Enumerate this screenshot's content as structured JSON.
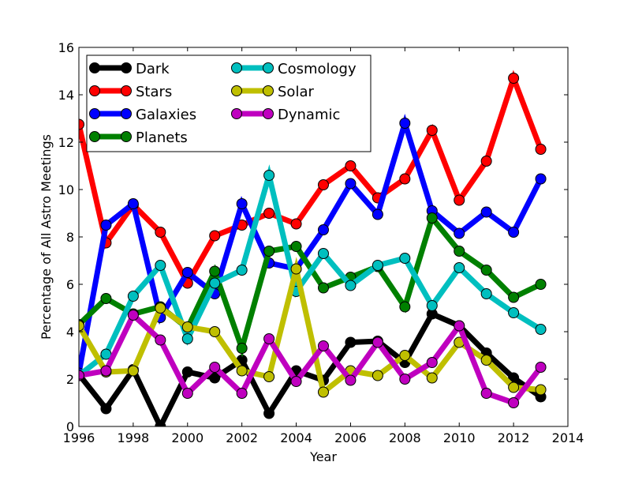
{
  "chart_data": {
    "type": "line",
    "title": "",
    "xlabel": "Year",
    "ylabel": "Percentage of All Astro Meetings",
    "xlim": [
      1996,
      2014
    ],
    "ylim": [
      0,
      16
    ],
    "xticks": [
      1996,
      1998,
      2000,
      2002,
      2004,
      2006,
      2008,
      2010,
      2012,
      2014
    ],
    "yticks": [
      0,
      2,
      4,
      6,
      8,
      10,
      12,
      14,
      16
    ],
    "grid": false,
    "legend_position": "top-left",
    "legend_columns": 2,
    "x": [
      1996,
      1997,
      1998,
      1999,
      2000,
      2001,
      2002,
      2003,
      2004,
      2005,
      2006,
      2007,
      2008,
      2009,
      2010,
      2011,
      2012,
      2013
    ],
    "series": [
      {
        "name": "Dark",
        "color": "#000000",
        "values": [
          2.2,
          0.75,
          2.4,
          0.0,
          2.3,
          2.05,
          2.8,
          0.55,
          2.35,
          1.95,
          3.55,
          3.6,
          2.7,
          4.75,
          4.25,
          3.1,
          2.05,
          1.25
        ]
      },
      {
        "name": "Stars",
        "color": "#ff0000",
        "values": [
          12.75,
          7.75,
          9.35,
          8.2,
          6.05,
          8.05,
          8.5,
          9.0,
          8.55,
          10.2,
          11.0,
          9.65,
          10.45,
          12.5,
          9.55,
          11.2,
          14.7,
          11.7
        ]
      },
      {
        "name": "Galaxies",
        "color": "#0000ff",
        "values": [
          2.25,
          8.5,
          9.4,
          4.6,
          6.5,
          5.6,
          9.4,
          6.9,
          6.65,
          8.3,
          10.25,
          8.95,
          12.8,
          9.1,
          8.15,
          9.05,
          8.2,
          10.45
        ]
      },
      {
        "name": "Planets",
        "color": "#008000",
        "values": [
          4.3,
          5.4,
          4.75,
          5.05,
          4.15,
          6.55,
          3.3,
          7.4,
          7.6,
          5.85,
          6.3,
          6.75,
          5.05,
          8.8,
          7.4,
          6.6,
          5.45,
          6.0
        ]
      },
      {
        "name": "Cosmology",
        "color": "#00bfbf",
        "values": [
          2.15,
          3.05,
          5.5,
          6.8,
          3.7,
          6.05,
          6.6,
          10.6,
          5.7,
          7.3,
          5.95,
          6.8,
          7.1,
          5.1,
          6.7,
          5.6,
          4.8,
          4.1
        ]
      },
      {
        "name": "Solar",
        "color": "#bfbf00",
        "values": [
          4.25,
          2.3,
          2.35,
          5.0,
          4.2,
          4.0,
          2.35,
          2.1,
          6.65,
          1.45,
          2.35,
          2.15,
          3.0,
          2.05,
          3.55,
          2.8,
          1.65,
          1.55
        ]
      },
      {
        "name": "Dynamic",
        "color": "#bf00bf",
        "values": [
          2.15,
          2.35,
          4.7,
          3.65,
          1.4,
          2.5,
          1.4,
          3.7,
          1.9,
          3.4,
          1.95,
          3.55,
          2.0,
          2.7,
          4.25,
          1.4,
          1.0,
          2.5
        ]
      }
    ]
  }
}
